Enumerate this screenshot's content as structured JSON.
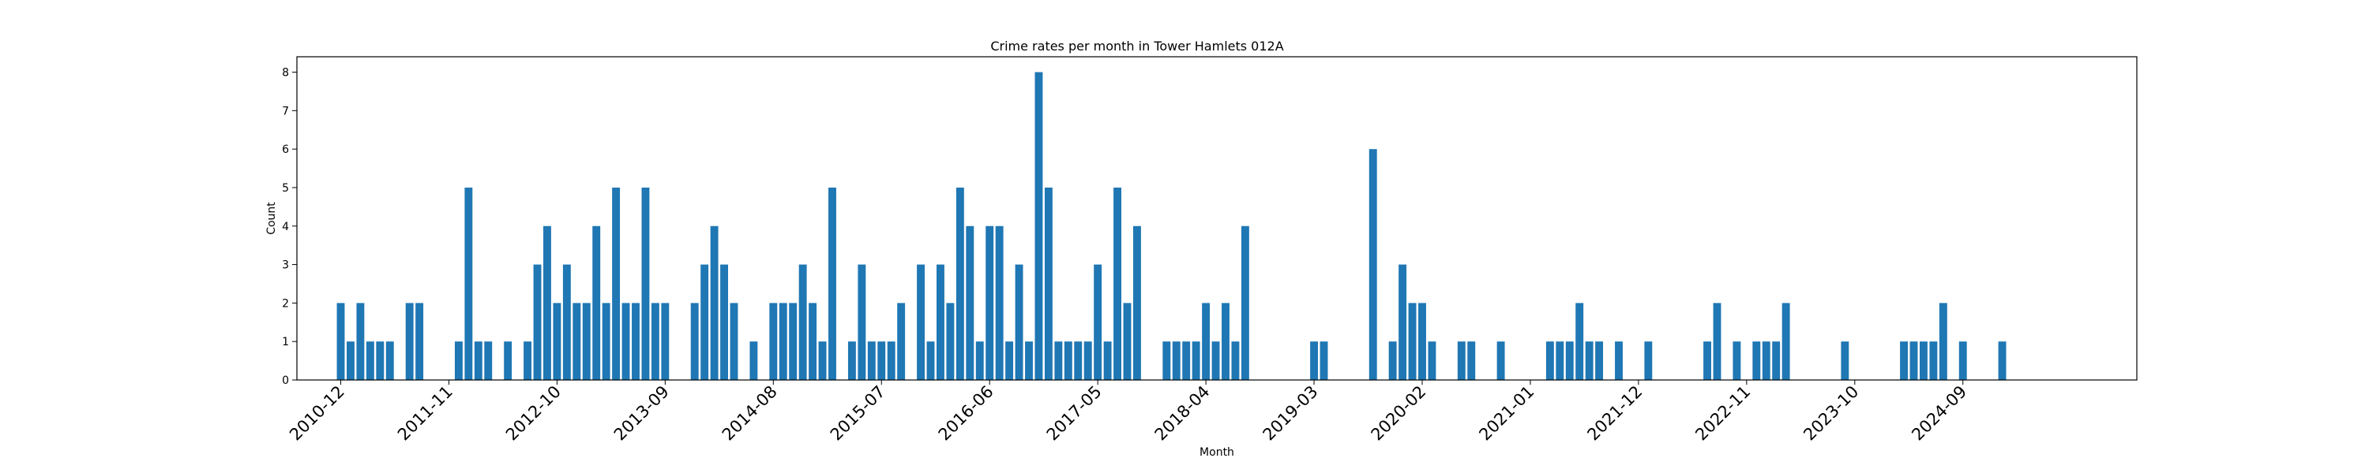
{
  "chart_data": {
    "type": "bar",
    "title": "Crime rates per month in Tower Hamlets 012A",
    "xlabel": "Month",
    "ylabel": "Count",
    "ylim": [
      0,
      8.4
    ],
    "yticks": [
      0,
      1,
      2,
      3,
      4,
      5,
      6,
      7,
      8
    ],
    "x_ticks": [
      "2010-12",
      "2011-11",
      "2012-10",
      "2013-09",
      "2014-08",
      "2015-07",
      "2016-06",
      "2017-05",
      "2018-04",
      "2019-03",
      "2020-02",
      "2021-01",
      "2021-12",
      "2022-11",
      "2023-10",
      "2024-09"
    ],
    "start_month": "2010-12",
    "month_count": 171,
    "grid": false,
    "legend": "none",
    "bar_color": "#1f77b4",
    "data": [
      {
        "x": "2010-12",
        "y": 2
      },
      {
        "x": "2011-01",
        "y": 1
      },
      {
        "x": "2011-02",
        "y": 2
      },
      {
        "x": "2011-03",
        "y": 1
      },
      {
        "x": "2011-04",
        "y": 1
      },
      {
        "x": "2011-05",
        "y": 1
      },
      {
        "x": "2011-07",
        "y": 2
      },
      {
        "x": "2011-08",
        "y": 2
      },
      {
        "x": "2011-12",
        "y": 1
      },
      {
        "x": "2012-01",
        "y": 5
      },
      {
        "x": "2012-02",
        "y": 1
      },
      {
        "x": "2012-03",
        "y": 1
      },
      {
        "x": "2012-05",
        "y": 1
      },
      {
        "x": "2012-07",
        "y": 1
      },
      {
        "x": "2012-08",
        "y": 3
      },
      {
        "x": "2012-09",
        "y": 4
      },
      {
        "x": "2012-10",
        "y": 2
      },
      {
        "x": "2012-11",
        "y": 3
      },
      {
        "x": "2012-12",
        "y": 2
      },
      {
        "x": "2013-01",
        "y": 2
      },
      {
        "x": "2013-02",
        "y": 4
      },
      {
        "x": "2013-03",
        "y": 2
      },
      {
        "x": "2013-04",
        "y": 5
      },
      {
        "x": "2013-05",
        "y": 2
      },
      {
        "x": "2013-06",
        "y": 2
      },
      {
        "x": "2013-07",
        "y": 5
      },
      {
        "x": "2013-08",
        "y": 2
      },
      {
        "x": "2013-09",
        "y": 2
      },
      {
        "x": "2013-12",
        "y": 2
      },
      {
        "x": "2014-01",
        "y": 3
      },
      {
        "x": "2014-02",
        "y": 4
      },
      {
        "x": "2014-03",
        "y": 3
      },
      {
        "x": "2014-04",
        "y": 2
      },
      {
        "x": "2014-06",
        "y": 1
      },
      {
        "x": "2014-08",
        "y": 2
      },
      {
        "x": "2014-09",
        "y": 2
      },
      {
        "x": "2014-10",
        "y": 2
      },
      {
        "x": "2014-11",
        "y": 3
      },
      {
        "x": "2014-12",
        "y": 2
      },
      {
        "x": "2015-01",
        "y": 1
      },
      {
        "x": "2015-02",
        "y": 5
      },
      {
        "x": "2015-04",
        "y": 1
      },
      {
        "x": "2015-05",
        "y": 3
      },
      {
        "x": "2015-06",
        "y": 1
      },
      {
        "x": "2015-07",
        "y": 1
      },
      {
        "x": "2015-08",
        "y": 1
      },
      {
        "x": "2015-09",
        "y": 2
      },
      {
        "x": "2015-11",
        "y": 3
      },
      {
        "x": "2015-12",
        "y": 1
      },
      {
        "x": "2016-01",
        "y": 3
      },
      {
        "x": "2016-02",
        "y": 2
      },
      {
        "x": "2016-03",
        "y": 5
      },
      {
        "x": "2016-04",
        "y": 4
      },
      {
        "x": "2016-05",
        "y": 1
      },
      {
        "x": "2016-06",
        "y": 4
      },
      {
        "x": "2016-07",
        "y": 4
      },
      {
        "x": "2016-08",
        "y": 1
      },
      {
        "x": "2016-09",
        "y": 3
      },
      {
        "x": "2016-10",
        "y": 1
      },
      {
        "x": "2016-11",
        "y": 8
      },
      {
        "x": "2016-12",
        "y": 5
      },
      {
        "x": "2017-01",
        "y": 1
      },
      {
        "x": "2017-02",
        "y": 1
      },
      {
        "x": "2017-03",
        "y": 1
      },
      {
        "x": "2017-04",
        "y": 1
      },
      {
        "x": "2017-05",
        "y": 3
      },
      {
        "x": "2017-06",
        "y": 1
      },
      {
        "x": "2017-07",
        "y": 5
      },
      {
        "x": "2017-08",
        "y": 2
      },
      {
        "x": "2017-09",
        "y": 4
      },
      {
        "x": "2017-12",
        "y": 1
      },
      {
        "x": "2018-01",
        "y": 1
      },
      {
        "x": "2018-02",
        "y": 1
      },
      {
        "x": "2018-03",
        "y": 1
      },
      {
        "x": "2018-04",
        "y": 2
      },
      {
        "x": "2018-05",
        "y": 1
      },
      {
        "x": "2018-06",
        "y": 2
      },
      {
        "x": "2018-07",
        "y": 1
      },
      {
        "x": "2018-08",
        "y": 4
      },
      {
        "x": "2019-03",
        "y": 1
      },
      {
        "x": "2019-04",
        "y": 1
      },
      {
        "x": "2019-09",
        "y": 6
      },
      {
        "x": "2019-11",
        "y": 1
      },
      {
        "x": "2019-12",
        "y": 3
      },
      {
        "x": "2020-01",
        "y": 2
      },
      {
        "x": "2020-02",
        "y": 2
      },
      {
        "x": "2020-03",
        "y": 1
      },
      {
        "x": "2020-06",
        "y": 1
      },
      {
        "x": "2020-07",
        "y": 1
      },
      {
        "x": "2020-10",
        "y": 1
      },
      {
        "x": "2021-03",
        "y": 1
      },
      {
        "x": "2021-04",
        "y": 1
      },
      {
        "x": "2021-05",
        "y": 1
      },
      {
        "x": "2021-06",
        "y": 2
      },
      {
        "x": "2021-07",
        "y": 1
      },
      {
        "x": "2021-08",
        "y": 1
      },
      {
        "x": "2021-10",
        "y": 1
      },
      {
        "x": "2022-01",
        "y": 1
      },
      {
        "x": "2022-07",
        "y": 1
      },
      {
        "x": "2022-08",
        "y": 2
      },
      {
        "x": "2022-10",
        "y": 1
      },
      {
        "x": "2022-12",
        "y": 1
      },
      {
        "x": "2023-01",
        "y": 1
      },
      {
        "x": "2023-02",
        "y": 1
      },
      {
        "x": "2023-03",
        "y": 2
      },
      {
        "x": "2023-09",
        "y": 1
      },
      {
        "x": "2024-03",
        "y": 1
      },
      {
        "x": "2024-04",
        "y": 1
      },
      {
        "x": "2024-05",
        "y": 1
      },
      {
        "x": "2024-06",
        "y": 1
      },
      {
        "x": "2024-07",
        "y": 2
      },
      {
        "x": "2024-09",
        "y": 1
      },
      {
        "x": "2025-01",
        "y": 1
      }
    ]
  }
}
